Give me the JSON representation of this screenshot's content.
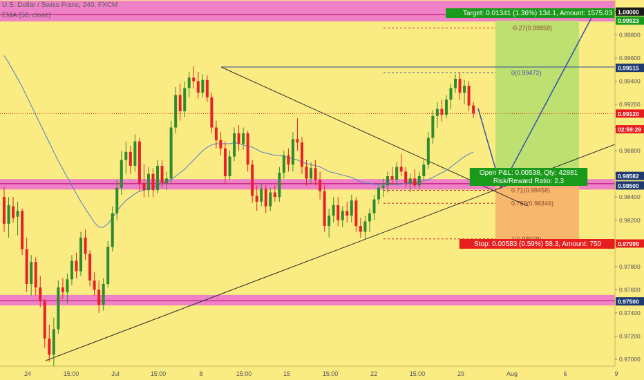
{
  "header": {
    "symbol_line": "U.S. Dollar / Swiss Franc, 240, FXCM",
    "indicator_line": "EMA (50, close)"
  },
  "colors": {
    "background": "#fbeb83",
    "up_candle": "#2e8b2e",
    "down_candle": "#e8202a",
    "ema": "#4a7ec9",
    "zone_band": "#ec70d2",
    "zone_line": "#c0117e",
    "target_zone": "#b7df6f",
    "stop_zone": "#f6b36c",
    "target_label": "#1a9a1a",
    "stop_label": "#e81e1e",
    "current_price": "#e02020",
    "fib_line": "#c62a2a",
    "fib_zero_line": "#3c4fa8",
    "level_label": "#1e3a6e"
  },
  "chart_data": {
    "type": "candlestick",
    "symbol": "U.S. Dollar / Swiss Franc",
    "interval": "240",
    "source": "FXCM",
    "ylim": [
      0.9688,
      1.0012
    ],
    "price_ticks": [
      "0.97000",
      "0.97200",
      "0.97400",
      "0.97600",
      "0.97800",
      "0.98000",
      "0.98200",
      "0.98400",
      "0.98600",
      "0.98800",
      "0.99000",
      "0.99200",
      "0.99400",
      "0.99600",
      "0.99800",
      "1.00000"
    ],
    "time_ticks": [
      "24",
      "15:00",
      "Jul",
      "15:00",
      "8",
      "15:00",
      "15",
      "15:00",
      "22",
      "15:00",
      "29",
      "Aug",
      "6",
      "9"
    ],
    "candles": [
      {
        "o": 0.984,
        "h": 0.9849,
        "l": 0.981,
        "c": 0.9817
      },
      {
        "o": 0.9817,
        "h": 0.984,
        "l": 0.9805,
        "c": 0.9833
      },
      {
        "o": 0.9832,
        "h": 0.984,
        "l": 0.9818,
        "c": 0.9822
      },
      {
        "o": 0.9823,
        "h": 0.9836,
        "l": 0.9807,
        "c": 0.9828
      },
      {
        "o": 0.9828,
        "h": 0.983,
        "l": 0.979,
        "c": 0.9795
      },
      {
        "o": 0.9795,
        "h": 0.9805,
        "l": 0.9758,
        "c": 0.9765
      },
      {
        "o": 0.9765,
        "h": 0.979,
        "l": 0.9755,
        "c": 0.9784
      },
      {
        "o": 0.9784,
        "h": 0.9788,
        "l": 0.9755,
        "c": 0.9762
      },
      {
        "o": 0.9762,
        "h": 0.9772,
        "l": 0.9745,
        "c": 0.975
      },
      {
        "o": 0.975,
        "h": 0.9752,
        "l": 0.971,
        "c": 0.9718
      },
      {
        "o": 0.9718,
        "h": 0.973,
        "l": 0.9698,
        "c": 0.9704
      },
      {
        "o": 0.9704,
        "h": 0.9736,
        "l": 0.9694,
        "c": 0.9726
      },
      {
        "o": 0.9726,
        "h": 0.9768,
        "l": 0.9722,
        "c": 0.9762
      },
      {
        "o": 0.9762,
        "h": 0.977,
        "l": 0.9752,
        "c": 0.9758
      },
      {
        "o": 0.9758,
        "h": 0.9774,
        "l": 0.9748,
        "c": 0.9769
      },
      {
        "o": 0.9769,
        "h": 0.979,
        "l": 0.9764,
        "c": 0.9785
      },
      {
        "o": 0.9785,
        "h": 0.9792,
        "l": 0.977,
        "c": 0.9776
      },
      {
        "o": 0.9776,
        "h": 0.981,
        "l": 0.9772,
        "c": 0.9805
      },
      {
        "o": 0.9805,
        "h": 0.9812,
        "l": 0.9786,
        "c": 0.9791
      },
      {
        "o": 0.9791,
        "h": 0.9794,
        "l": 0.9763,
        "c": 0.9768
      },
      {
        "o": 0.9768,
        "h": 0.9775,
        "l": 0.9755,
        "c": 0.976
      },
      {
        "o": 0.976,
        "h": 0.9768,
        "l": 0.974,
        "c": 0.9747
      },
      {
        "o": 0.9747,
        "h": 0.977,
        "l": 0.9742,
        "c": 0.9765
      },
      {
        "o": 0.9765,
        "h": 0.9802,
        "l": 0.9762,
        "c": 0.9797
      },
      {
        "o": 0.9797,
        "h": 0.9832,
        "l": 0.9793,
        "c": 0.9826
      },
      {
        "o": 0.9826,
        "h": 0.9855,
        "l": 0.982,
        "c": 0.9848
      },
      {
        "o": 0.9848,
        "h": 0.988,
        "l": 0.9842,
        "c": 0.9872
      },
      {
        "o": 0.9872,
        "h": 0.9888,
        "l": 0.986,
        "c": 0.9879
      },
      {
        "o": 0.9879,
        "h": 0.9884,
        "l": 0.986,
        "c": 0.9867
      },
      {
        "o": 0.9867,
        "h": 0.9894,
        "l": 0.9862,
        "c": 0.9888
      },
      {
        "o": 0.9888,
        "h": 0.9891,
        "l": 0.9845,
        "c": 0.9852
      },
      {
        "o": 0.9852,
        "h": 0.9868,
        "l": 0.984,
        "c": 0.9846
      },
      {
        "o": 0.9846,
        "h": 0.9866,
        "l": 0.984,
        "c": 0.986
      },
      {
        "o": 0.986,
        "h": 0.9865,
        "l": 0.984,
        "c": 0.9846
      },
      {
        "o": 0.9846,
        "h": 0.9872,
        "l": 0.9843,
        "c": 0.9867
      },
      {
        "o": 0.9867,
        "h": 0.9872,
        "l": 0.9848,
        "c": 0.9852
      },
      {
        "o": 0.9852,
        "h": 0.9862,
        "l": 0.9846,
        "c": 0.9856
      },
      {
        "o": 0.9856,
        "h": 0.9906,
        "l": 0.9852,
        "c": 0.99
      },
      {
        "o": 0.99,
        "h": 0.9935,
        "l": 0.9895,
        "c": 0.9928
      },
      {
        "o": 0.9928,
        "h": 0.9938,
        "l": 0.9906,
        "c": 0.9914
      },
      {
        "o": 0.9914,
        "h": 0.994,
        "l": 0.9909,
        "c": 0.9934
      },
      {
        "o": 0.9934,
        "h": 0.9948,
        "l": 0.9926,
        "c": 0.9943
      },
      {
        "o": 0.9943,
        "h": 0.9953,
        "l": 0.9934,
        "c": 0.994
      },
      {
        "o": 0.994,
        "h": 0.9948,
        "l": 0.9925,
        "c": 0.993
      },
      {
        "o": 0.993,
        "h": 0.9946,
        "l": 0.9926,
        "c": 0.9941
      },
      {
        "o": 0.9941,
        "h": 0.9945,
        "l": 0.9922,
        "c": 0.9926
      },
      {
        "o": 0.9926,
        "h": 0.993,
        "l": 0.9895,
        "c": 0.99
      },
      {
        "o": 0.99,
        "h": 0.9906,
        "l": 0.9882,
        "c": 0.9889
      },
      {
        "o": 0.9889,
        "h": 0.9896,
        "l": 0.9876,
        "c": 0.9882
      },
      {
        "o": 0.9882,
        "h": 0.9888,
        "l": 0.9852,
        "c": 0.9858
      },
      {
        "o": 0.9858,
        "h": 0.988,
        "l": 0.9855,
        "c": 0.9875
      },
      {
        "o": 0.9875,
        "h": 0.99,
        "l": 0.9871,
        "c": 0.9895
      },
      {
        "o": 0.9895,
        "h": 0.9902,
        "l": 0.988,
        "c": 0.9886
      },
      {
        "o": 0.9886,
        "h": 0.99,
        "l": 0.9881,
        "c": 0.9895
      },
      {
        "o": 0.9895,
        "h": 0.9897,
        "l": 0.9862,
        "c": 0.9868
      },
      {
        "o": 0.9868,
        "h": 0.9872,
        "l": 0.9835,
        "c": 0.9841
      },
      {
        "o": 0.9841,
        "h": 0.985,
        "l": 0.9828,
        "c": 0.9836
      },
      {
        "o": 0.9836,
        "h": 0.9852,
        "l": 0.9832,
        "c": 0.9847
      },
      {
        "o": 0.9847,
        "h": 0.985,
        "l": 0.9826,
        "c": 0.9832
      },
      {
        "o": 0.9832,
        "h": 0.9848,
        "l": 0.9828,
        "c": 0.9844
      },
      {
        "o": 0.9844,
        "h": 0.985,
        "l": 0.9836,
        "c": 0.984
      },
      {
        "o": 0.984,
        "h": 0.9866,
        "l": 0.9836,
        "c": 0.9861
      },
      {
        "o": 0.9861,
        "h": 0.988,
        "l": 0.9856,
        "c": 0.9876
      },
      {
        "o": 0.9876,
        "h": 0.9882,
        "l": 0.9862,
        "c": 0.9868
      },
      {
        "o": 0.9868,
        "h": 0.9896,
        "l": 0.9862,
        "c": 0.989
      },
      {
        "o": 0.989,
        "h": 0.9908,
        "l": 0.988,
        "c": 0.9887
      },
      {
        "o": 0.9887,
        "h": 0.9892,
        "l": 0.986,
        "c": 0.9866
      },
      {
        "o": 0.9866,
        "h": 0.9872,
        "l": 0.985,
        "c": 0.9856
      },
      {
        "o": 0.9856,
        "h": 0.987,
        "l": 0.9852,
        "c": 0.9865
      },
      {
        "o": 0.9865,
        "h": 0.9872,
        "l": 0.985,
        "c": 0.9855
      },
      {
        "o": 0.9855,
        "h": 0.9862,
        "l": 0.9838,
        "c": 0.9845
      },
      {
        "o": 0.9845,
        "h": 0.985,
        "l": 0.981,
        "c": 0.9815
      },
      {
        "o": 0.9815,
        "h": 0.983,
        "l": 0.9805,
        "c": 0.9824
      },
      {
        "o": 0.9824,
        "h": 0.984,
        "l": 0.9818,
        "c": 0.9833
      },
      {
        "o": 0.9833,
        "h": 0.984,
        "l": 0.9815,
        "c": 0.982
      },
      {
        "o": 0.982,
        "h": 0.9832,
        "l": 0.9814,
        "c": 0.9828
      },
      {
        "o": 0.9828,
        "h": 0.9836,
        "l": 0.9818,
        "c": 0.9824
      },
      {
        "o": 0.9824,
        "h": 0.9842,
        "l": 0.9818,
        "c": 0.9837
      },
      {
        "o": 0.9837,
        "h": 0.984,
        "l": 0.981,
        "c": 0.9815
      },
      {
        "o": 0.9815,
        "h": 0.9822,
        "l": 0.9805,
        "c": 0.981
      },
      {
        "o": 0.981,
        "h": 0.9824,
        "l": 0.9804,
        "c": 0.9819
      },
      {
        "o": 0.9819,
        "h": 0.983,
        "l": 0.981,
        "c": 0.9826
      },
      {
        "o": 0.9826,
        "h": 0.9842,
        "l": 0.982,
        "c": 0.9838
      },
      {
        "o": 0.9838,
        "h": 0.9852,
        "l": 0.9834,
        "c": 0.9848
      },
      {
        "o": 0.9848,
        "h": 0.9856,
        "l": 0.984,
        "c": 0.985
      },
      {
        "o": 0.985,
        "h": 0.9862,
        "l": 0.9844,
        "c": 0.9858
      },
      {
        "o": 0.9858,
        "h": 0.9866,
        "l": 0.985,
        "c": 0.9855
      },
      {
        "o": 0.9855,
        "h": 0.987,
        "l": 0.985,
        "c": 0.9866
      },
      {
        "o": 0.9866,
        "h": 0.9877,
        "l": 0.9858,
        "c": 0.9862
      },
      {
        "o": 0.9862,
        "h": 0.9866,
        "l": 0.9848,
        "c": 0.9852
      },
      {
        "o": 0.9852,
        "h": 0.986,
        "l": 0.9844,
        "c": 0.9856
      },
      {
        "o": 0.9856,
        "h": 0.9864,
        "l": 0.9848,
        "c": 0.985
      },
      {
        "o": 0.985,
        "h": 0.9862,
        "l": 0.9846,
        "c": 0.9858
      },
      {
        "o": 0.9858,
        "h": 0.9872,
        "l": 0.9855,
        "c": 0.9868
      },
      {
        "o": 0.9868,
        "h": 0.9896,
        "l": 0.9864,
        "c": 0.9891
      },
      {
        "o": 0.9891,
        "h": 0.9915,
        "l": 0.9886,
        "c": 0.991
      },
      {
        "o": 0.991,
        "h": 0.9922,
        "l": 0.99,
        "c": 0.9916
      },
      {
        "o": 0.9916,
        "h": 0.9924,
        "l": 0.9905,
        "c": 0.9911
      },
      {
        "o": 0.9911,
        "h": 0.9928,
        "l": 0.9908,
        "c": 0.9924
      },
      {
        "o": 0.9924,
        "h": 0.9938,
        "l": 0.9916,
        "c": 0.9934
      },
      {
        "o": 0.9934,
        "h": 0.9946,
        "l": 0.993,
        "c": 0.9942
      },
      {
        "o": 0.9942,
        "h": 0.9948,
        "l": 0.9924,
        "c": 0.993
      },
      {
        "o": 0.993,
        "h": 0.9941,
        "l": 0.992,
        "c": 0.9936
      },
      {
        "o": 0.9936,
        "h": 0.994,
        "l": 0.9914,
        "c": 0.9919
      },
      {
        "o": 0.9919,
        "h": 0.9922,
        "l": 0.9908,
        "c": 0.9912
      }
    ],
    "ema_50": [
      0.9962,
      0.9956,
      0.9949,
      0.9942,
      0.9935,
      0.9927,
      0.9919,
      0.9911,
      0.9903,
      0.9895,
      0.9887,
      0.9879,
      0.9871,
      0.9864,
      0.9857,
      0.985,
      0.9843,
      0.9836,
      0.983,
      0.9824,
      0.9818,
      0.9814,
      0.9814,
      0.9817,
      0.9822,
      0.9828,
      0.9833,
      0.9837,
      0.984,
      0.9843,
      0.9845,
      0.9846,
      0.9847,
      0.9848,
      0.985,
      0.9852,
      0.9853,
      0.9855,
      0.9858,
      0.9861,
      0.9864,
      0.9868,
      0.9872,
      0.9876,
      0.988,
      0.9883,
      0.9885,
      0.9886,
      0.9886,
      0.9886,
      0.9886,
      0.9887,
      0.9886,
      0.9885,
      0.9884,
      0.9883,
      0.9881,
      0.9879,
      0.9878,
      0.9877,
      0.9876,
      0.9876,
      0.9875,
      0.9874,
      0.9873,
      0.9872,
      0.987,
      0.9869,
      0.9868,
      0.9867,
      0.9866,
      0.9864,
      0.9862,
      0.9861,
      0.986,
      0.9859,
      0.9858,
      0.9857,
      0.9855,
      0.9853,
      0.9852,
      0.9852,
      0.9851,
      0.9851,
      0.9851,
      0.9851,
      0.9851,
      0.9851,
      0.9851,
      0.9852,
      0.9852,
      0.9853,
      0.9853,
      0.9854,
      0.9855,
      0.9857,
      0.9859,
      0.9861,
      0.9863,
      0.9866,
      0.9869,
      0.9872,
      0.9875,
      0.9877,
      0.9879
    ],
    "zones": [
      {
        "from": 0.99915,
        "to": 1.00095
      },
      {
        "from": 0.98465,
        "to": 0.98555
      },
      {
        "from": 0.97465,
        "to": 0.97555
      }
    ],
    "zone_lines": [
      0.99975,
      0.98515,
      0.97505
    ],
    "current_price": 0.9912,
    "fib_levels": [
      {
        "label": "-0.27(0.99858)",
        "price": 0.99858
      },
      {
        "label": "0(0.99472)",
        "price": 0.99472
      },
      {
        "label": "0.71(0.98458)",
        "price": 0.98458
      },
      {
        "label": "0.786(0.98346)",
        "price": 0.98346
      },
      {
        "label": "1(0.98039)",
        "price": 0.98039
      }
    ],
    "position": {
      "entry": 0.98582,
      "target": 0.99923,
      "stop": 0.97999,
      "target_text": "Target: 0.01341 (1.36%) 134.1, Amount: 1575.03",
      "stop_text": "Stop: 0.00583 (0.59%) 58.3, Amount: 750",
      "pnl_text": "Open P&L: 0.00538, Qty: 42881",
      "rr_text": "Risk/Reward Ratio: 2.3"
    },
    "price_labels": [
      {
        "text": "1.00000",
        "price": 1.0,
        "style": "dark"
      },
      {
        "text": "0.99923",
        "price": 0.99923,
        "style": "green"
      },
      {
        "text": "0.99515",
        "price": 0.99515,
        "style": "navy"
      },
      {
        "text": "0.99120",
        "price": 0.9912,
        "style": "red"
      },
      {
        "text": "02:59:29",
        "price": 0.98985,
        "style": "red"
      },
      {
        "text": "0.98582",
        "price": 0.98582,
        "style": "navy"
      },
      {
        "text": "0.98500",
        "price": 0.985,
        "style": "navy"
      },
      {
        "text": "0.97999",
        "price": 0.97999,
        "style": "red"
      },
      {
        "text": "0.97500",
        "price": 0.975,
        "style": "navy"
      }
    ]
  }
}
